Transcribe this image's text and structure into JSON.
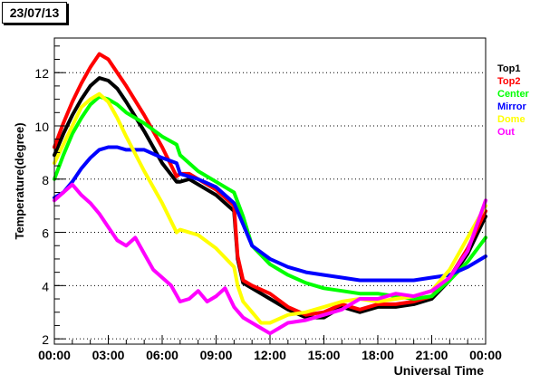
{
  "chart_data": {
    "type": "line",
    "title": "23/07/13",
    "xlabel": "Universal Time",
    "ylabel": "Temperature(degree)",
    "x_ticks": [
      "00:00",
      "03:00",
      "06:00",
      "09:00",
      "12:00",
      "15:00",
      "18:00",
      "21:00",
      "00:00"
    ],
    "xlim": [
      0,
      24
    ],
    "ylim": [
      1.8,
      13.3
    ],
    "y_ticks": [
      2,
      4,
      6,
      8,
      10,
      12
    ],
    "grid": "horizontal dotted",
    "legend": "right",
    "series": [
      {
        "name": "Top1",
        "color": "#000000",
        "x": [
          0,
          0.5,
          1,
          1.5,
          2,
          2.5,
          3,
          3.5,
          4,
          5,
          6,
          6.8,
          7,
          7.5,
          8,
          9,
          10,
          10.2,
          10.5,
          11,
          12,
          13,
          14,
          15,
          16,
          17,
          18,
          19,
          20,
          21,
          22,
          23,
          24
        ],
        "y": [
          8.9,
          9.7,
          10.4,
          11.0,
          11.5,
          11.8,
          11.7,
          11.4,
          10.9,
          9.8,
          8.6,
          7.9,
          7.9,
          8.0,
          7.8,
          7.4,
          6.8,
          5.0,
          4.1,
          3.9,
          3.5,
          3.1,
          2.8,
          2.8,
          3.2,
          3.0,
          3.2,
          3.2,
          3.3,
          3.5,
          4.2,
          5.2,
          6.6
        ]
      },
      {
        "name": "Top2",
        "color": "#ff0000",
        "x": [
          0,
          0.5,
          1,
          1.5,
          2,
          2.5,
          3,
          3.5,
          4,
          5,
          6,
          6.8,
          7,
          7.5,
          8,
          9,
          10,
          10.2,
          10.5,
          11,
          12,
          13,
          14,
          15,
          16,
          17,
          18,
          19,
          20,
          21,
          22,
          23,
          24
        ],
        "y": [
          9.2,
          10.1,
          10.9,
          11.6,
          12.2,
          12.7,
          12.5,
          12.0,
          11.5,
          10.4,
          9.2,
          8.1,
          8.2,
          8.2,
          8.0,
          7.6,
          7.0,
          5.1,
          4.2,
          4.0,
          3.7,
          3.2,
          2.9,
          3.0,
          3.3,
          3.1,
          3.3,
          3.3,
          3.4,
          3.6,
          4.3,
          5.4,
          6.8
        ]
      },
      {
        "name": "Center",
        "color": "#00ff00",
        "x": [
          0,
          0.5,
          1,
          1.5,
          2,
          2.5,
          3,
          3.5,
          4,
          5,
          6,
          6.8,
          7,
          8,
          9,
          10,
          10.5,
          11,
          12,
          13,
          14,
          15,
          16,
          17,
          18,
          19,
          20,
          21,
          22,
          23,
          24
        ],
        "y": [
          8.0,
          8.9,
          9.7,
          10.3,
          10.8,
          11.1,
          11.0,
          10.8,
          10.5,
          10.1,
          9.6,
          9.3,
          8.9,
          8.3,
          7.9,
          7.5,
          6.6,
          5.5,
          4.8,
          4.4,
          4.1,
          3.9,
          3.8,
          3.7,
          3.7,
          3.6,
          3.5,
          3.6,
          4.2,
          4.9,
          5.8
        ]
      },
      {
        "name": "Mirror",
        "color": "#0000ff",
        "x": [
          0,
          0.5,
          1,
          1.5,
          2,
          2.5,
          3,
          3.5,
          4,
          5,
          6,
          6.8,
          7,
          8,
          9,
          10,
          10.5,
          11,
          12,
          13,
          14,
          15,
          16,
          17,
          18,
          19,
          20,
          21,
          22,
          23,
          24
        ],
        "y": [
          7.3,
          7.5,
          7.9,
          8.4,
          8.8,
          9.1,
          9.2,
          9.2,
          9.1,
          9.1,
          8.8,
          8.6,
          8.2,
          8.0,
          7.7,
          7.1,
          6.3,
          5.5,
          5.0,
          4.7,
          4.5,
          4.4,
          4.3,
          4.2,
          4.2,
          4.2,
          4.2,
          4.3,
          4.4,
          4.7,
          5.1
        ]
      },
      {
        "name": "Dome",
        "color": "#ffff00",
        "x": [
          0,
          0.5,
          1,
          1.5,
          2,
          2.5,
          3,
          3.5,
          4,
          5,
          6,
          6.8,
          7,
          8,
          9,
          10,
          10.2,
          10.5,
          11,
          11.5,
          12,
          13,
          14,
          15,
          16,
          17,
          18,
          19,
          20,
          21,
          22,
          23,
          24
        ],
        "y": [
          8.6,
          9.3,
          10.0,
          10.7,
          11.0,
          11.2,
          10.9,
          10.3,
          9.6,
          8.3,
          7.1,
          6.0,
          6.1,
          5.9,
          5.4,
          4.7,
          4.0,
          3.4,
          3.0,
          2.6,
          2.6,
          2.9,
          3.0,
          3.2,
          3.4,
          3.5,
          3.4,
          3.5,
          3.6,
          3.8,
          4.6,
          5.8,
          7.0
        ]
      },
      {
        "name": "Out",
        "color": "#ff00ff",
        "x": [
          0,
          0.5,
          1,
          1.5,
          2,
          2.5,
          3,
          3.5,
          4,
          4.5,
          5,
          5.5,
          6,
          6.5,
          7,
          7.5,
          8,
          8.5,
          9,
          9.5,
          10,
          10.5,
          11,
          11.5,
          12,
          12.5,
          13,
          14,
          15,
          16,
          17,
          18,
          19,
          20,
          21,
          22,
          23,
          24
        ],
        "y": [
          7.2,
          7.5,
          7.8,
          7.4,
          7.1,
          6.7,
          6.2,
          5.7,
          5.5,
          5.8,
          5.2,
          4.6,
          4.3,
          4.0,
          3.4,
          3.5,
          3.8,
          3.4,
          3.6,
          3.9,
          3.2,
          2.8,
          2.6,
          2.4,
          2.2,
          2.4,
          2.6,
          2.7,
          2.9,
          3.1,
          3.5,
          3.5,
          3.7,
          3.6,
          3.8,
          4.3,
          5.3,
          7.2
        ]
      }
    ]
  }
}
